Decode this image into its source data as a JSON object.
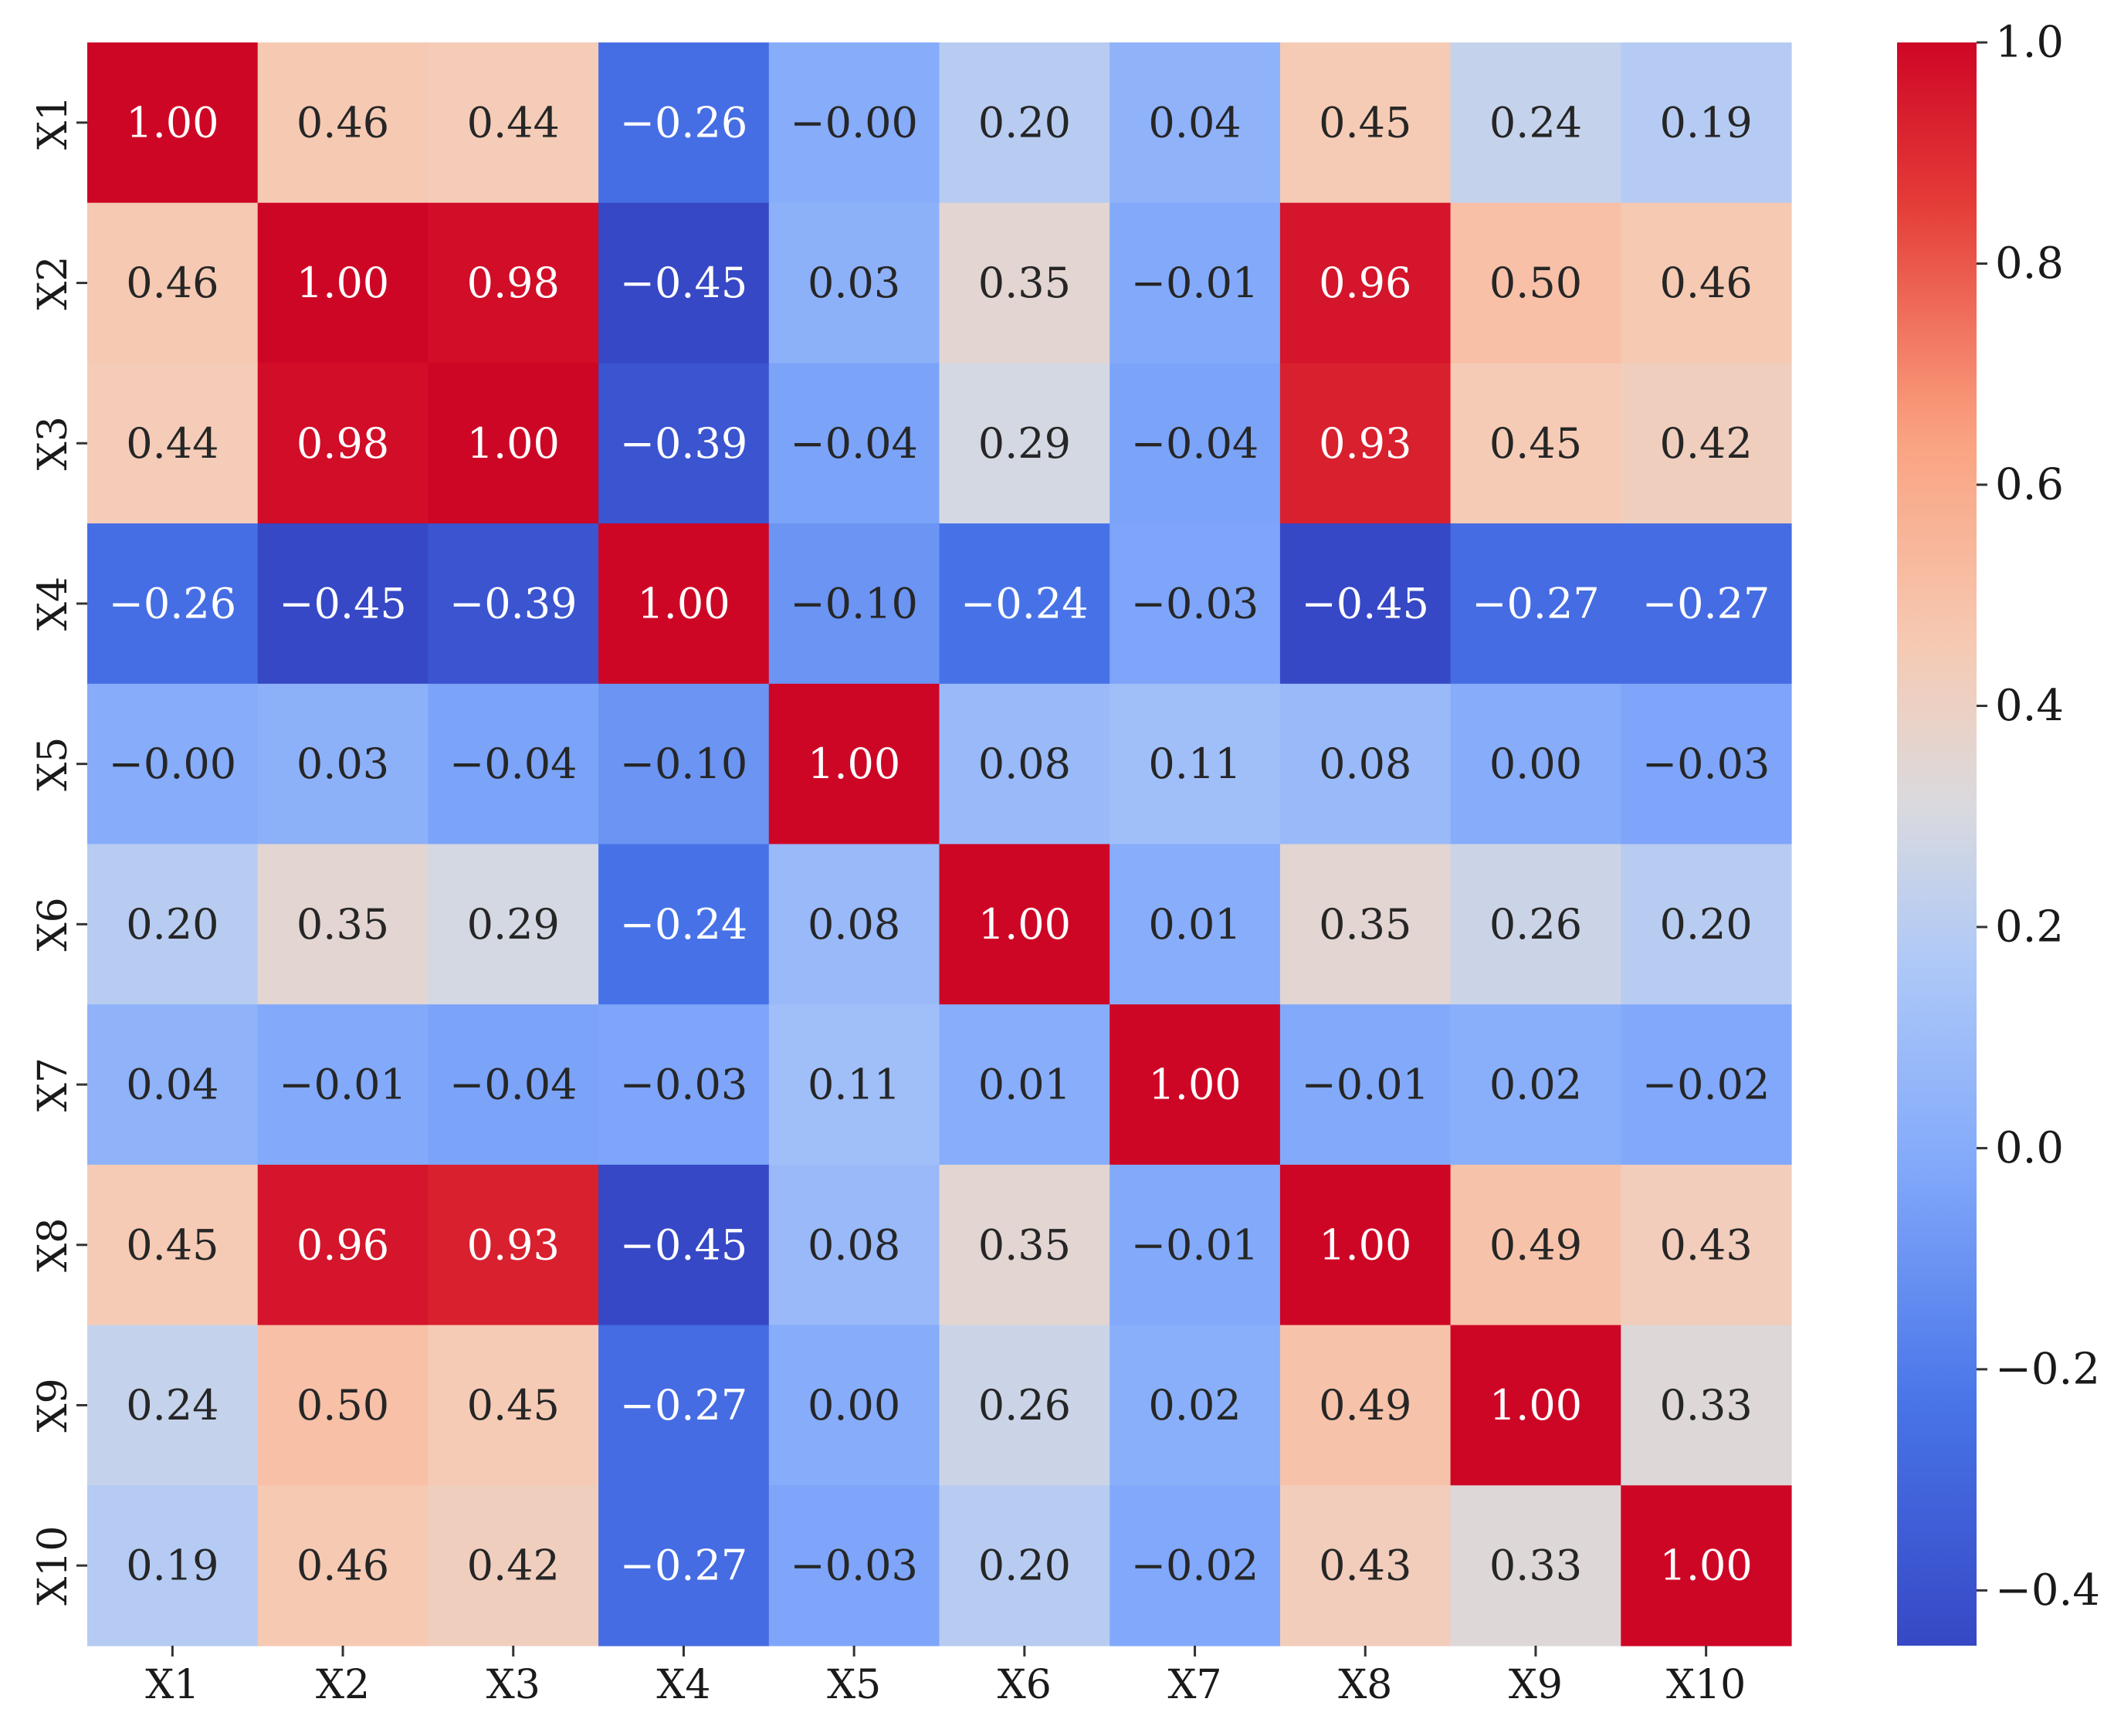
{
  "chart_data": {
    "type": "heatmap",
    "title": "",
    "xlabel": "",
    "ylabel": "",
    "x_categories": [
      "X1",
      "X2",
      "X3",
      "X4",
      "X5",
      "X6",
      "X7",
      "X8",
      "X9",
      "X10"
    ],
    "y_categories": [
      "X1",
      "X2",
      "X3",
      "X4",
      "X5",
      "X6",
      "X7",
      "X8",
      "X9",
      "X10"
    ],
    "values": [
      [
        1.0,
        0.46,
        0.44,
        -0.26,
        -0.0,
        0.2,
        0.04,
        0.45,
        0.24,
        0.19
      ],
      [
        0.46,
        1.0,
        0.98,
        -0.45,
        0.03,
        0.35,
        -0.01,
        0.96,
        0.5,
        0.46
      ],
      [
        0.44,
        0.98,
        1.0,
        -0.39,
        -0.04,
        0.29,
        -0.04,
        0.93,
        0.45,
        0.42
      ],
      [
        -0.26,
        -0.45,
        -0.39,
        1.0,
        -0.1,
        -0.24,
        -0.03,
        -0.45,
        -0.27,
        -0.27
      ],
      [
        -0.0,
        0.03,
        -0.04,
        -0.1,
        1.0,
        0.08,
        0.11,
        0.08,
        0.0,
        -0.03
      ],
      [
        0.2,
        0.35,
        0.29,
        -0.24,
        0.08,
        1.0,
        0.01,
        0.35,
        0.26,
        0.2
      ],
      [
        0.04,
        -0.01,
        -0.04,
        -0.03,
        0.11,
        0.01,
        1.0,
        -0.01,
        0.02,
        -0.02
      ],
      [
        0.45,
        0.96,
        0.93,
        -0.45,
        0.08,
        0.35,
        -0.01,
        1.0,
        0.49,
        0.43
      ],
      [
        0.24,
        0.5,
        0.45,
        -0.27,
        0.0,
        0.26,
        0.02,
        0.49,
        1.0,
        0.33
      ],
      [
        0.19,
        0.46,
        0.42,
        -0.27,
        -0.03,
        0.2,
        -0.02,
        0.43,
        0.33,
        1.0
      ]
    ],
    "value_labels": [
      [
        "1.00",
        "0.46",
        "0.44",
        "−0.26",
        "−0.00",
        "0.20",
        "0.04",
        "0.45",
        "0.24",
        "0.19"
      ],
      [
        "0.46",
        "1.00",
        "0.98",
        "−0.45",
        "0.03",
        "0.35",
        "−0.01",
        "0.96",
        "0.50",
        "0.46"
      ],
      [
        "0.44",
        "0.98",
        "1.00",
        "−0.39",
        "−0.04",
        "0.29",
        "−0.04",
        "0.93",
        "0.45",
        "0.42"
      ],
      [
        "−0.26",
        "−0.45",
        "−0.39",
        "1.00",
        "−0.10",
        "−0.24",
        "−0.03",
        "−0.45",
        "−0.27",
        "−0.27"
      ],
      [
        "−0.00",
        "0.03",
        "−0.04",
        "−0.10",
        "1.00",
        "0.08",
        "0.11",
        "0.08",
        "0.00",
        "−0.03"
      ],
      [
        "0.20",
        "0.35",
        "0.29",
        "−0.24",
        "0.08",
        "1.00",
        "0.01",
        "0.35",
        "0.26",
        "0.20"
      ],
      [
        "0.04",
        "−0.01",
        "−0.04",
        "−0.03",
        "0.11",
        "0.01",
        "1.00",
        "−0.01",
        "0.02",
        "−0.02"
      ],
      [
        "0.45",
        "0.96",
        "0.93",
        "−0.45",
        "0.08",
        "0.35",
        "−0.01",
        "1.00",
        "0.49",
        "0.43"
      ],
      [
        "0.24",
        "0.50",
        "0.45",
        "−0.27",
        "0.00",
        "0.26",
        "0.02",
        "0.49",
        "1.00",
        "0.33"
      ],
      [
        "0.19",
        "0.46",
        "0.42",
        "−0.27",
        "−0.03",
        "0.20",
        "−0.02",
        "0.43",
        "0.33",
        "1.00"
      ]
    ],
    "colormap": "coolwarm",
    "color_range": [
      -0.45,
      1.0
    ],
    "colorbar": {
      "position": "right",
      "ticks": [
        1.0,
        0.8,
        0.6,
        0.4,
        0.2,
        0.0,
        -0.2,
        -0.4
      ],
      "tick_labels": [
        "1.0",
        "0.8",
        "0.6",
        "0.4",
        "0.2",
        "0.0",
        "−0.2",
        "−0.4"
      ]
    },
    "grid": false,
    "legend": "none"
  }
}
